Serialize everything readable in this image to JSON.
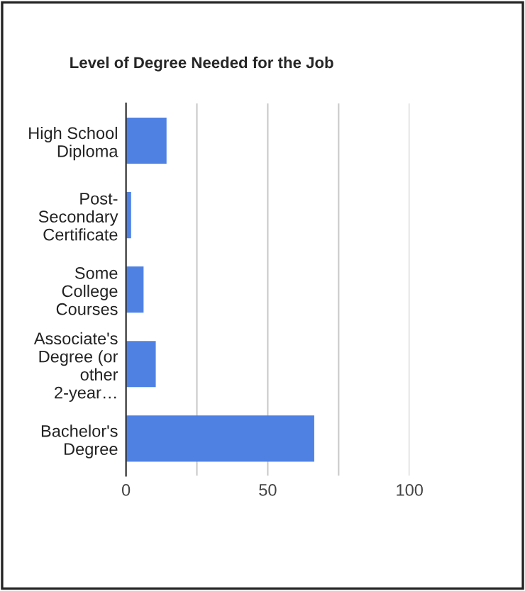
{
  "chart_data": {
    "type": "bar",
    "orientation": "horizontal",
    "title": "Level of Degree Needed for the Job",
    "categories": [
      "High School Diploma",
      "Post-Secondary Certificate",
      "Some College Courses",
      "Associate's Degree (or other 2-year…",
      "Bachelor's Degree"
    ],
    "values": [
      14.3,
      1.8,
      6.2,
      10.5,
      66.4
    ],
    "color": "#4f81e3",
    "xlim": [
      0,
      100
    ],
    "xticks": [
      0,
      {
        "value": 25,
        "label": null
      },
      50,
      {
        "value": 75,
        "label": null
      },
      100
    ],
    "grid": "x"
  }
}
